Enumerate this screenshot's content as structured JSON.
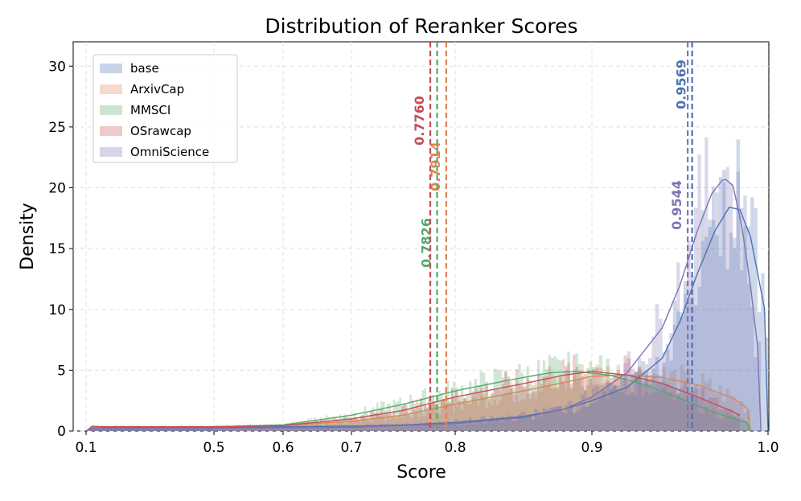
{
  "chart_data": {
    "type": "histogram",
    "title": "Distribution of Reranker Scores",
    "xlabel": "Score",
    "ylabel": "Density",
    "xscale": "custom-nonlinear",
    "xticks": [
      "0.1",
      "0.5",
      "0.6",
      "0.7",
      "0.8",
      "0.9",
      "1.0"
    ],
    "yticks": [
      "0",
      "5",
      "10",
      "15",
      "20",
      "25",
      "30"
    ],
    "ylim": [
      0,
      32
    ],
    "grid": true,
    "legend_position": "top-left",
    "series": [
      {
        "name": "base",
        "color": "#4c72b0",
        "median": 0.9569,
        "median_label": "0.9569",
        "kde": [
          [
            0.1,
            0.0
          ],
          [
            0.12,
            0.25
          ],
          [
            0.15,
            0.3
          ],
          [
            0.3,
            0.3
          ],
          [
            0.5,
            0.3
          ],
          [
            0.6,
            0.35
          ],
          [
            0.7,
            0.4
          ],
          [
            0.75,
            0.5
          ],
          [
            0.8,
            0.7
          ],
          [
            0.85,
            1.2
          ],
          [
            0.88,
            1.8
          ],
          [
            0.9,
            2.5
          ],
          [
            0.92,
            3.6
          ],
          [
            0.94,
            6.0
          ],
          [
            0.95,
            9.0
          ],
          [
            0.96,
            13.0
          ],
          [
            0.97,
            16.5
          ],
          [
            0.978,
            18.4
          ],
          [
            0.984,
            18.2
          ],
          [
            0.99,
            16.0
          ],
          [
            1.0,
            8.6
          ]
        ]
      },
      {
        "name": "ArxivCap",
        "color": "#dd8452",
        "median": 0.7914,
        "median_label": "0.7914",
        "kde": [
          [
            0.1,
            0.0
          ],
          [
            0.12,
            0.3
          ],
          [
            0.15,
            0.35
          ],
          [
            0.3,
            0.35
          ],
          [
            0.5,
            0.35
          ],
          [
            0.6,
            0.45
          ],
          [
            0.7,
            0.8
          ],
          [
            0.75,
            1.3
          ],
          [
            0.8,
            2.2
          ],
          [
            0.85,
            3.3
          ],
          [
            0.88,
            4.0
          ],
          [
            0.9,
            4.5
          ],
          [
            0.92,
            4.6
          ],
          [
            0.94,
            4.4
          ],
          [
            0.96,
            3.8
          ],
          [
            0.98,
            2.7
          ],
          [
            0.99,
            1.7
          ]
        ]
      },
      {
        "name": "MMSCI",
        "color": "#55a868",
        "median": 0.7826,
        "median_label": "0.7826",
        "kde": [
          [
            0.1,
            0.0
          ],
          [
            0.12,
            0.3
          ],
          [
            0.15,
            0.35
          ],
          [
            0.3,
            0.35
          ],
          [
            0.5,
            0.35
          ],
          [
            0.6,
            0.5
          ],
          [
            0.7,
            1.3
          ],
          [
            0.75,
            2.2
          ],
          [
            0.8,
            3.3
          ],
          [
            0.84,
            4.2
          ],
          [
            0.87,
            4.8
          ],
          [
            0.89,
            4.9
          ],
          [
            0.91,
            4.6
          ],
          [
            0.93,
            3.8
          ],
          [
            0.95,
            2.7
          ],
          [
            0.97,
            1.5
          ],
          [
            0.99,
            0.6
          ]
        ]
      },
      {
        "name": "OSrawcap",
        "color": "#c44e52",
        "median": 0.776,
        "median_label": "0.7760",
        "kde": [
          [
            0.1,
            0.0
          ],
          [
            0.12,
            0.4
          ],
          [
            0.15,
            0.35
          ],
          [
            0.3,
            0.35
          ],
          [
            0.5,
            0.35
          ],
          [
            0.6,
            0.45
          ],
          [
            0.7,
            1.0
          ],
          [
            0.75,
            1.7
          ],
          [
            0.8,
            2.8
          ],
          [
            0.85,
            3.9
          ],
          [
            0.88,
            4.6
          ],
          [
            0.9,
            4.9
          ],
          [
            0.92,
            4.6
          ],
          [
            0.94,
            3.9
          ],
          [
            0.96,
            2.8
          ],
          [
            0.98,
            1.6
          ],
          [
            0.985,
            1.2
          ]
        ]
      },
      {
        "name": "OmniScience",
        "color": "#8172b3",
        "median": 0.9544,
        "median_label": "0.9544",
        "kde": [
          [
            0.1,
            0.0
          ],
          [
            0.12,
            0.2
          ],
          [
            0.3,
            0.2
          ],
          [
            0.5,
            0.2
          ],
          [
            0.6,
            0.25
          ],
          [
            0.7,
            0.3
          ],
          [
            0.8,
            0.6
          ],
          [
            0.85,
            1.1
          ],
          [
            0.88,
            1.8
          ],
          [
            0.9,
            2.8
          ],
          [
            0.92,
            4.8
          ],
          [
            0.94,
            8.5
          ],
          [
            0.95,
            12.0
          ],
          [
            0.96,
            16.5
          ],
          [
            0.968,
            19.5
          ],
          [
            0.975,
            20.8
          ],
          [
            0.98,
            20.2
          ],
          [
            0.985,
            17.0
          ],
          [
            0.99,
            12.0
          ],
          [
            0.996,
            4.5
          ]
        ]
      }
    ]
  }
}
